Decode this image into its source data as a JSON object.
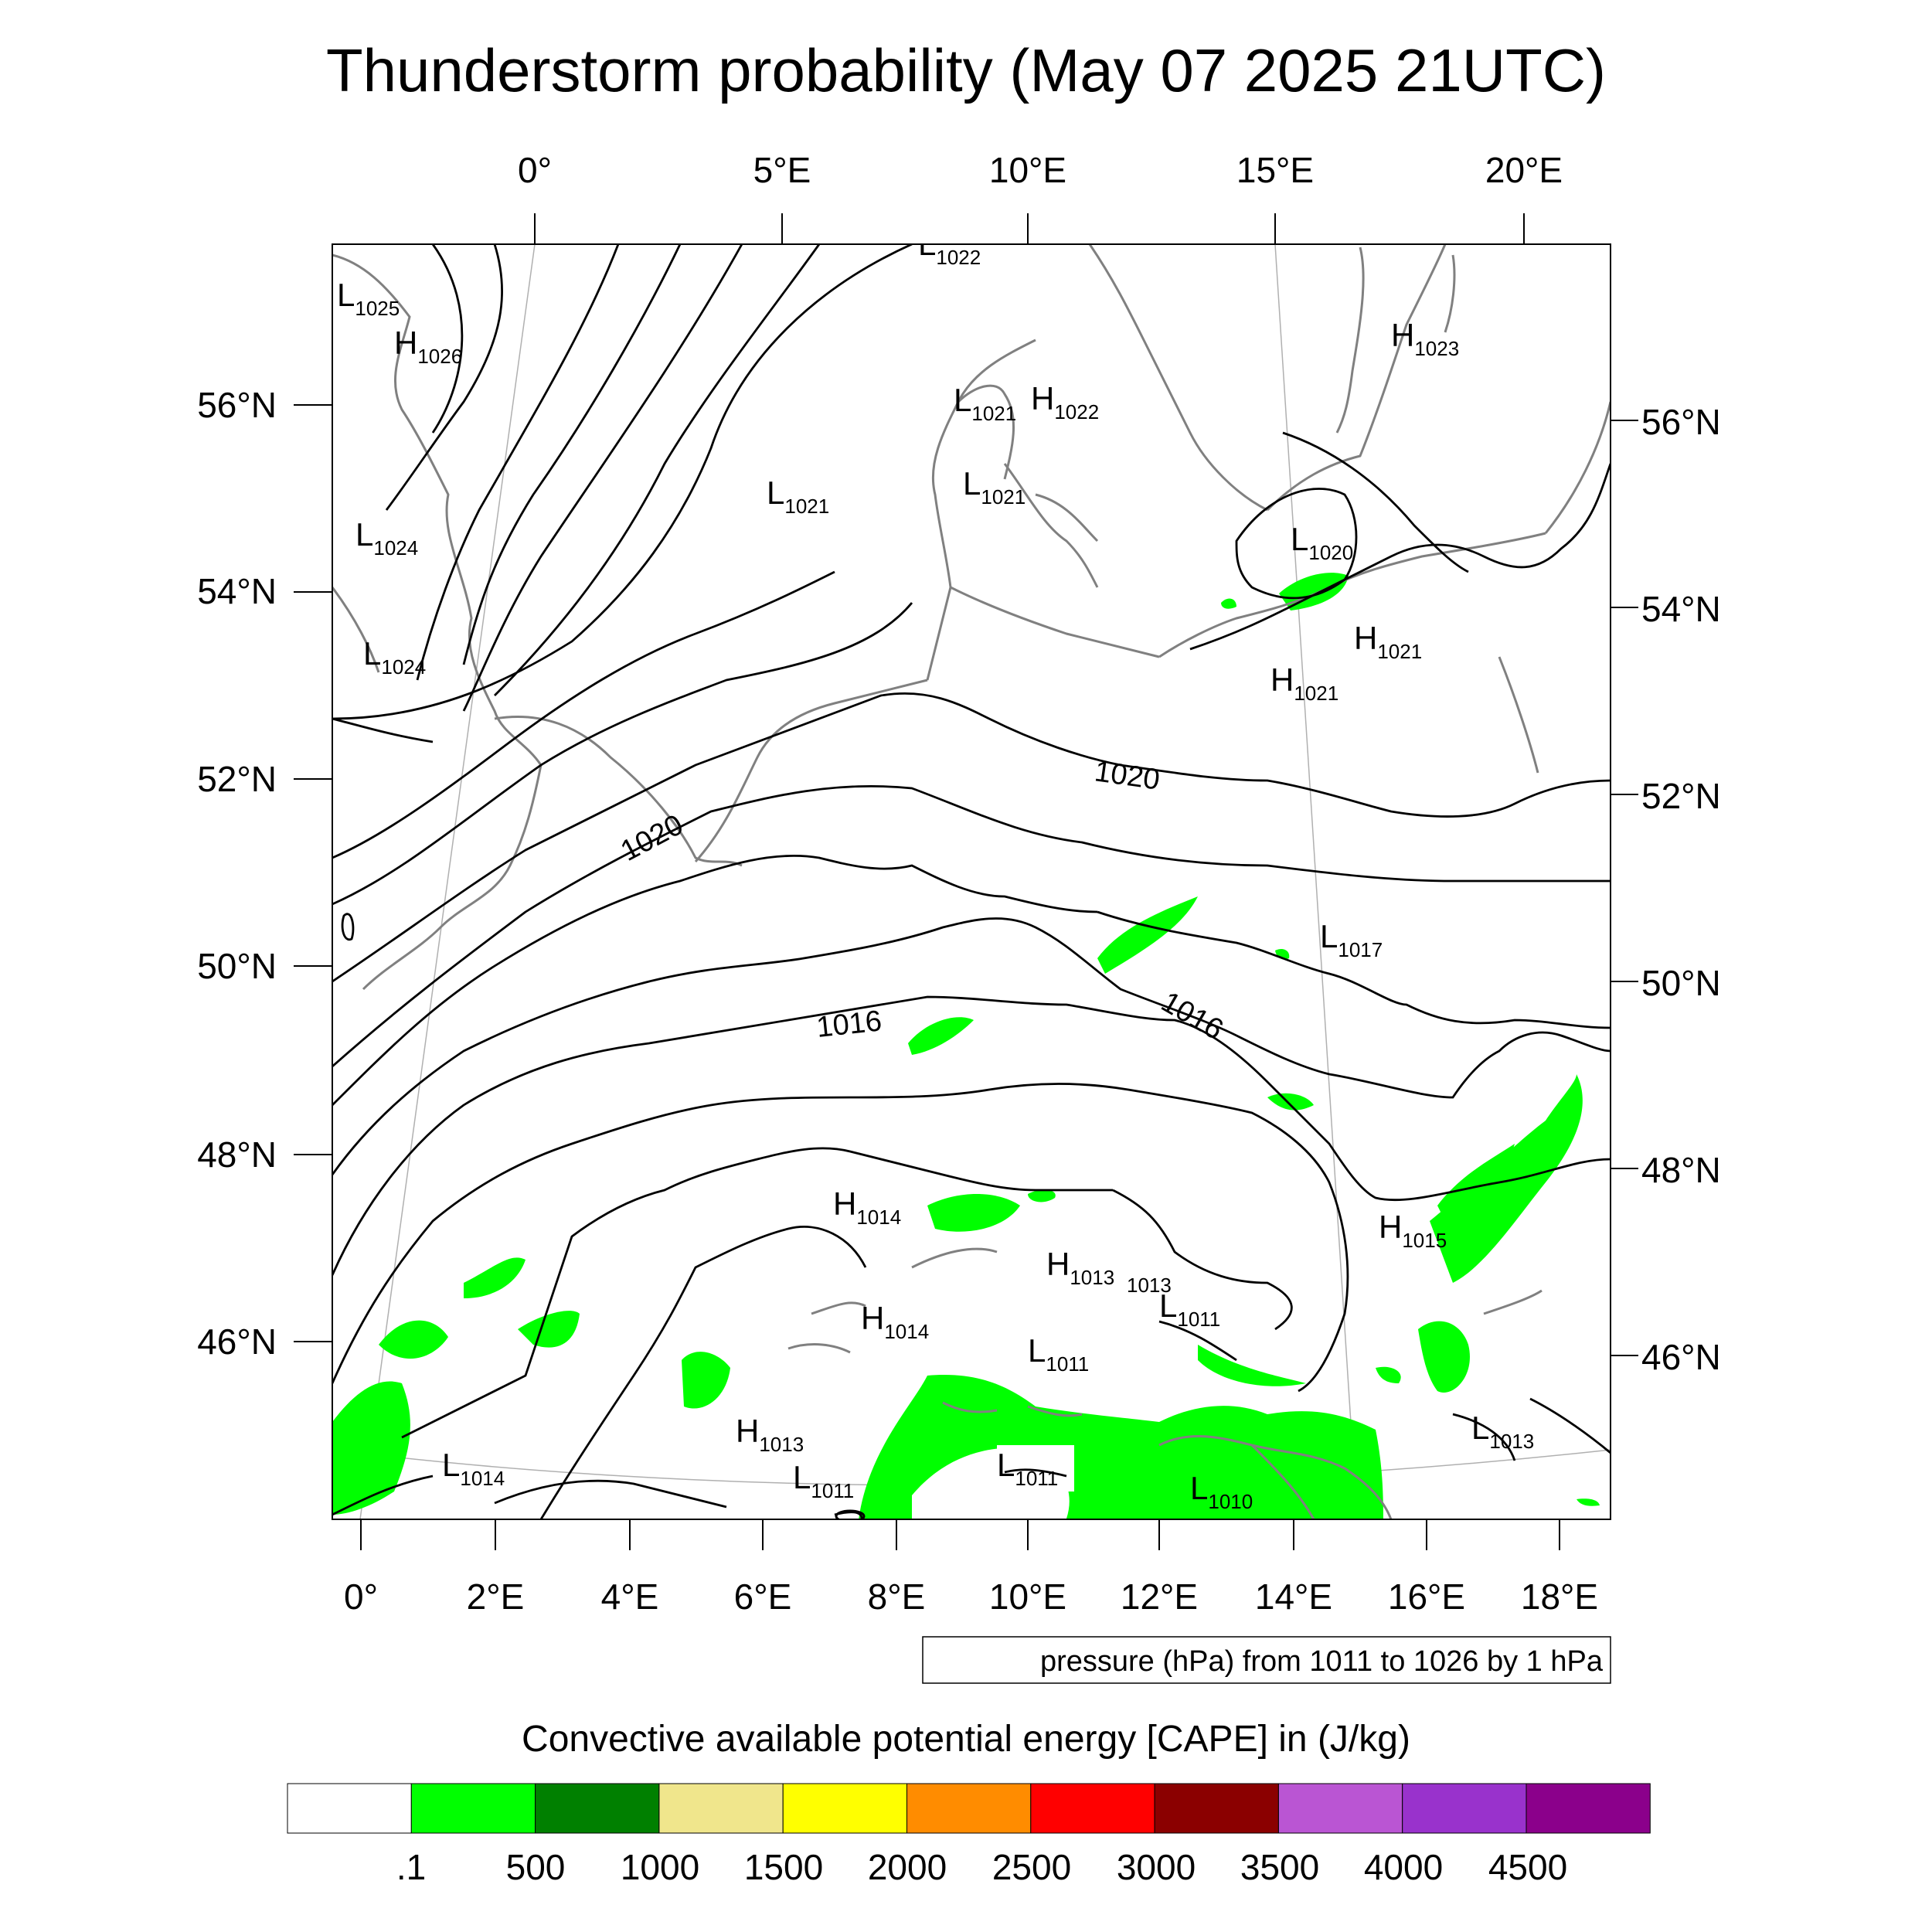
{
  "title": "Thunderstorm probability (May 07 2025 21UTC)",
  "top_lon_labels": [
    "0°",
    "5°E",
    "10°E",
    "15°E",
    "20°E"
  ],
  "bottom_lon_labels": [
    "0°",
    "2°E",
    "4°E",
    "6°E",
    "8°E",
    "10°E",
    "12°E",
    "14°E",
    "16°E",
    "18°E"
  ],
  "left_lat_labels": [
    "56°N",
    "54°N",
    "52°N",
    "50°N",
    "48°N",
    "46°N"
  ],
  "right_lat_labels": [
    "56°N",
    "54°N",
    "52°N",
    "50°N",
    "48°N",
    "46°N"
  ],
  "contour_info": "pressure (hPa) from 1011 to 1026 by 1 hPa",
  "contour_labels": [
    "1020",
    "1020",
    "1016",
    "1016"
  ],
  "pressure_centers": [
    {
      "letter": "L",
      "value": "1022"
    },
    {
      "letter": "L",
      "value": "1025"
    },
    {
      "letter": "H",
      "value": "1026"
    },
    {
      "letter": "H",
      "value": "1023"
    },
    {
      "letter": "L",
      "value": "1021"
    },
    {
      "letter": "H",
      "value": "1022"
    },
    {
      "letter": "L",
      "value": "1021"
    },
    {
      "letter": "L",
      "value": "1021"
    },
    {
      "letter": "L",
      "value": "1024"
    },
    {
      "letter": "L",
      "value": "1020"
    },
    {
      "letter": "L",
      "value": "1024"
    },
    {
      "letter": "H",
      "value": "1021"
    },
    {
      "letter": "H",
      "value": "1021"
    },
    {
      "letter": "L",
      "value": "1017"
    },
    {
      "letter": "H",
      "value": "1014"
    },
    {
      "letter": "H",
      "value": "1013"
    },
    {
      "letter": "",
      "value": "1013"
    },
    {
      "letter": "L",
      "value": "1011"
    },
    {
      "letter": "H",
      "value": "1014"
    },
    {
      "letter": "H",
      "value": "1015"
    },
    {
      "letter": "L",
      "value": "1011"
    },
    {
      "letter": "H",
      "value": "1013"
    },
    {
      "letter": "L",
      "value": "1011"
    },
    {
      "letter": "L",
      "value": "1011"
    },
    {
      "letter": "L",
      "value": "1010"
    },
    {
      "letter": "L",
      "value": "1013"
    },
    {
      "letter": "L",
      "value": "1014"
    }
  ],
  "colorbar": {
    "title": "Convective available potential energy [CAPE] in (J/kg)",
    "colors": [
      "#ffffff",
      "#00ff00",
      "#008000",
      "#f0e68c",
      "#ffff00",
      "#ff8c00",
      "#ff0000",
      "#8b0000",
      "#ba55d3",
      "#9932cc",
      "#8b008b"
    ],
    "labels": [
      ".1",
      "500",
      "1000",
      "1500",
      "2000",
      "2500",
      "3000",
      "3500",
      "4000",
      "4500"
    ]
  }
}
